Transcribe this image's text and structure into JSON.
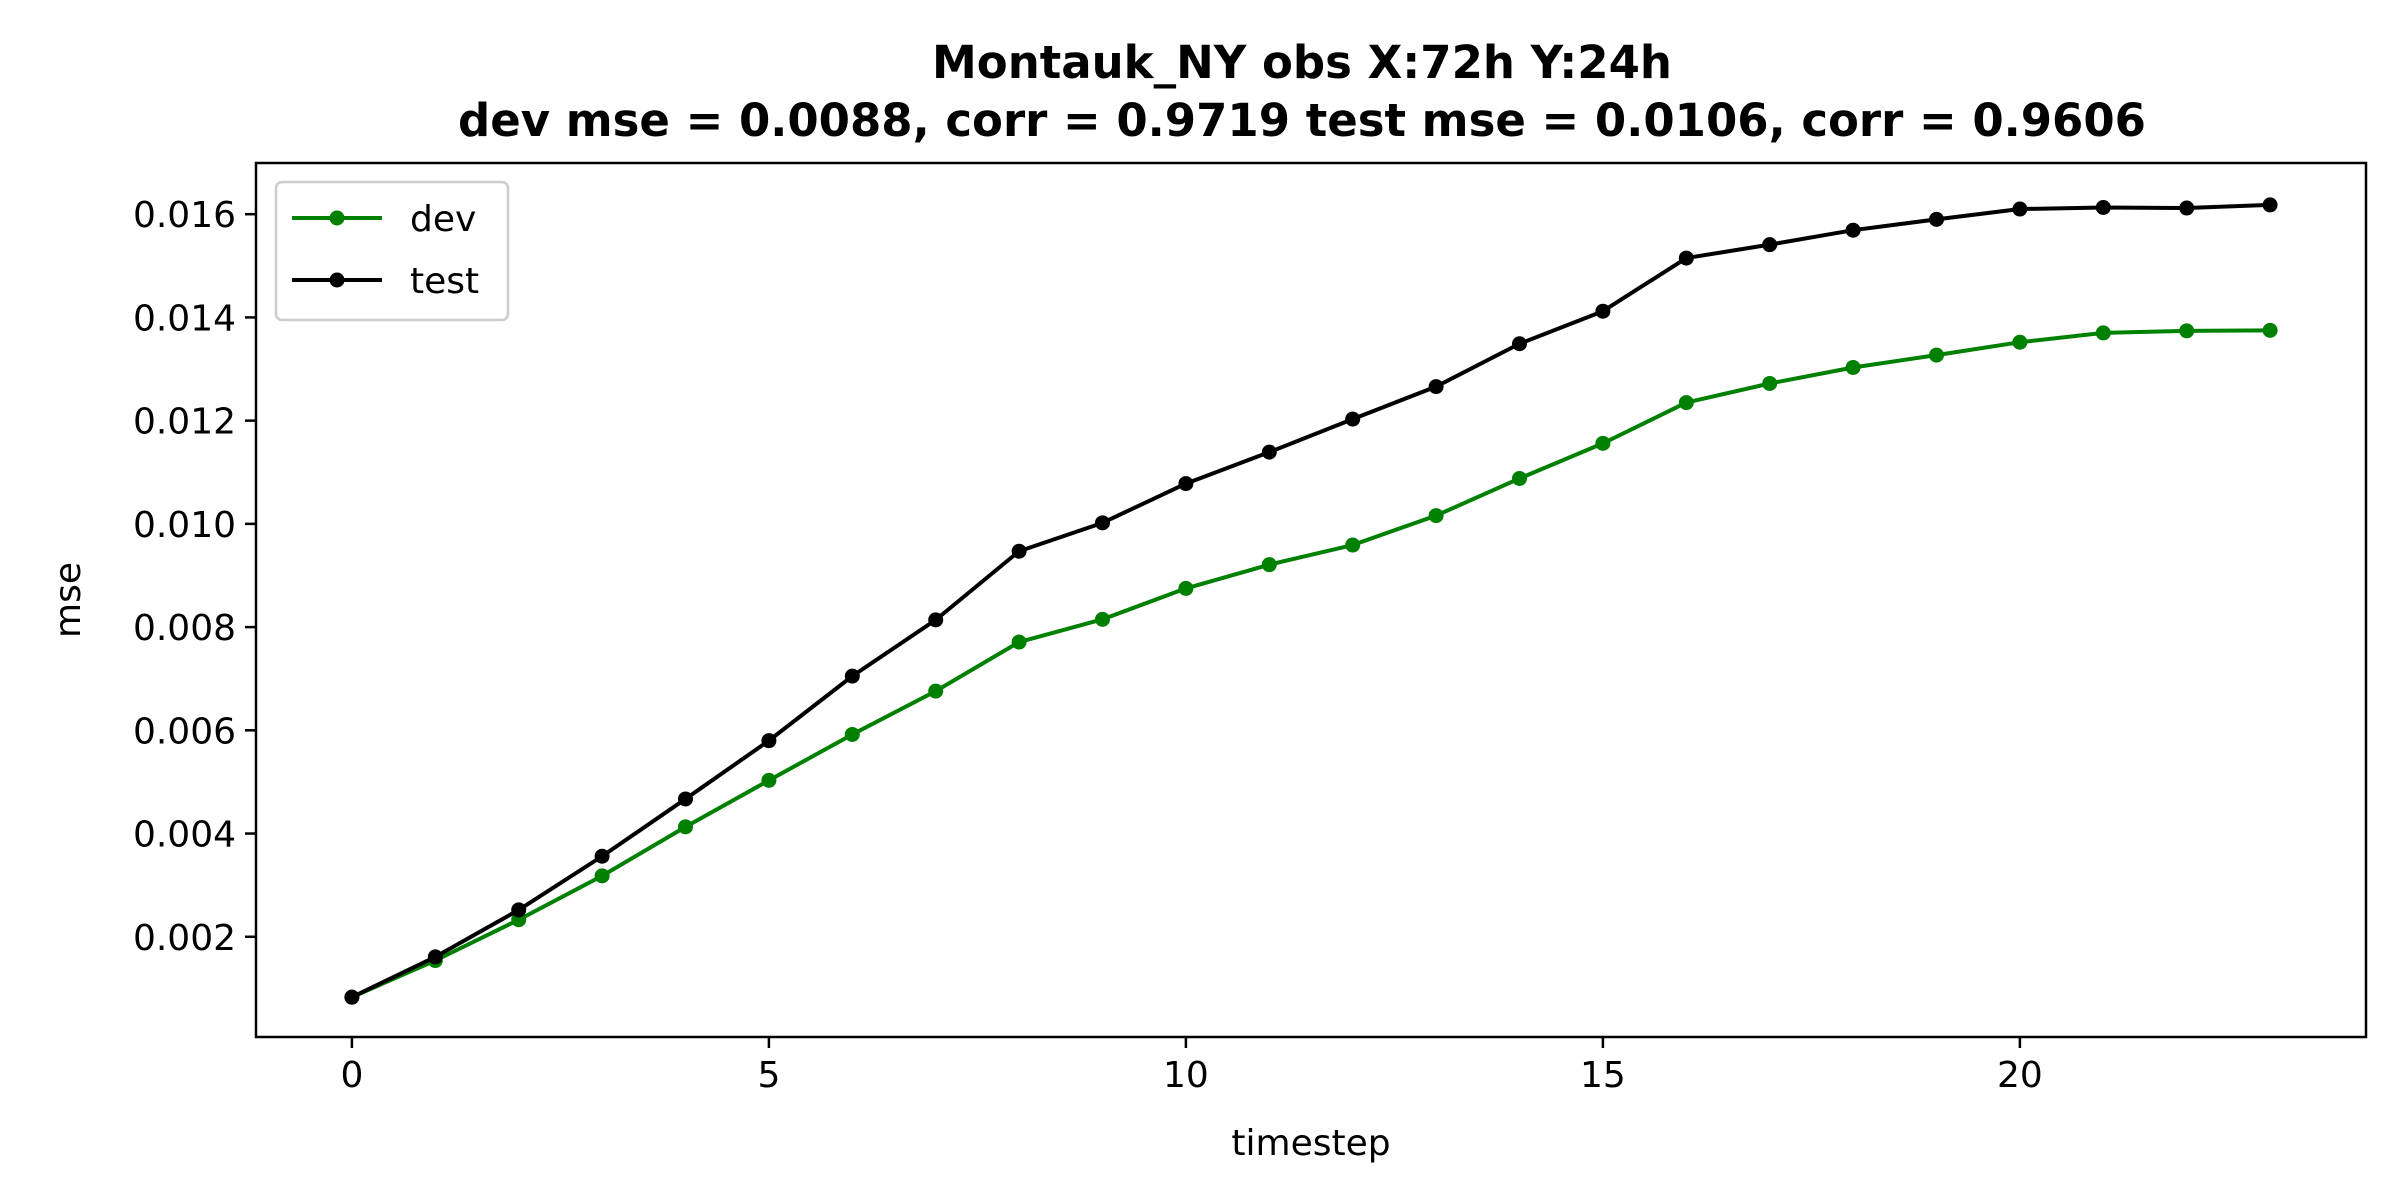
{
  "chart_data": {
    "type": "line",
    "title": "Montauk_NY   obs   X:72h   Y:24h",
    "subtitle": "dev mse = 0.0088, corr = 0.9719   test mse = 0.0106, corr = 0.9606",
    "xlabel": "timestep",
    "ylabel": "mse",
    "xlim": [
      -1.15,
      24.15
    ],
    "ylim": [
      5.8e-05,
      0.016992
    ],
    "xticks": [
      0,
      5,
      10,
      15,
      20
    ],
    "yticks": [
      0.002,
      0.004,
      0.006,
      0.008,
      0.01,
      0.012,
      0.014,
      0.016
    ],
    "ytick_labels": [
      "0.002",
      "0.004",
      "0.006",
      "0.008",
      "0.010",
      "0.012",
      "0.014",
      "0.016"
    ],
    "grid": false,
    "legend_position": "upper-left",
    "x": [
      0,
      1,
      2,
      3,
      4,
      5,
      6,
      7,
      8,
      9,
      10,
      11,
      12,
      13,
      14,
      15,
      16,
      17,
      18,
      19,
      20,
      21,
      22,
      23
    ],
    "series": [
      {
        "name": "dev",
        "color": "#008000",
        "values": [
          0.00083,
          0.00154,
          0.00233,
          0.00318,
          0.00413,
          0.00503,
          0.00592,
          0.00676,
          0.00771,
          0.00815,
          0.00875,
          0.00921,
          0.00959,
          0.01016,
          0.01088,
          0.01156,
          0.01235,
          0.01272,
          0.01303,
          0.01327,
          0.01352,
          0.0137,
          0.01374,
          0.01375
        ]
      },
      {
        "name": "test",
        "color": "#000000",
        "values": [
          0.00083,
          0.00161,
          0.00252,
          0.00356,
          0.00467,
          0.0058,
          0.00705,
          0.00814,
          0.00947,
          0.01002,
          0.01078,
          0.01139,
          0.01203,
          0.01266,
          0.01349,
          0.01412,
          0.01515,
          0.01541,
          0.01569,
          0.0159,
          0.0161,
          0.01613,
          0.01612,
          0.01618
        ]
      }
    ]
  }
}
